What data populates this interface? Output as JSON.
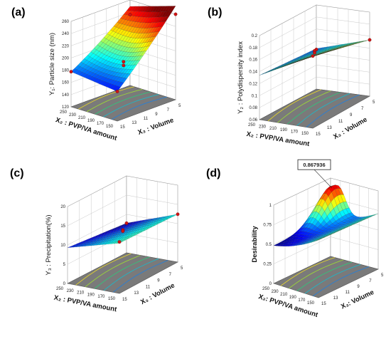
{
  "chart_data": [
    {
      "type": "surface3d",
      "panel_label": "(a)",
      "zlabel": "Y₁: Particle size (nm)",
      "xlabel": "X₂ : PVP/VA amount",
      "ylabel": "X₃ : Volume",
      "zticks": [
        "260",
        "240",
        "220",
        "200",
        "180",
        "160",
        "140",
        "120"
      ],
      "xticks": [
        "150",
        "170",
        "190",
        "210",
        "230",
        "250"
      ],
      "yticks": [
        "15",
        "13",
        "11",
        "9",
        "7",
        "5"
      ],
      "xlim": [
        150,
        250
      ],
      "ylim": [
        5,
        15
      ],
      "zlim": [
        120,
        260
      ],
      "corners": {
        "x150_y15": 150,
        "x250_y15": 138,
        "x150_y5": 228,
        "x250_y5": 260
      },
      "design_points": [
        [
          250,
          5,
          260
        ],
        [
          150,
          5,
          228
        ],
        [
          250,
          15,
          138
        ],
        [
          150,
          15,
          150
        ],
        [
          200,
          10,
          164
        ],
        [
          200,
          10,
          156
        ]
      ]
    },
    {
      "type": "surface3d",
      "panel_label": "(b)",
      "zlabel": "Y₂ : Polydispersity index",
      "xlabel": "X₂ : PVP/VA amount",
      "ylabel": "X₃ : Volume",
      "zticks": [
        "0.2",
        "0.18",
        "0.16",
        "0.14",
        "0.12",
        "0.1",
        "0.08",
        "0.06"
      ],
      "xticks": [
        "150",
        "170",
        "190",
        "210",
        "230",
        "250"
      ],
      "yticks": [
        "15",
        "13",
        "11",
        "9",
        "7",
        "5"
      ],
      "xlim": [
        150,
        250
      ],
      "ylim": [
        5,
        15
      ],
      "zlim": [
        0.06,
        0.2
      ],
      "corners": {
        "x150_y15": 0.1,
        "x250_y15": 0.17,
        "x150_y5": 0.09,
        "x250_y5": 0.13
      },
      "design_points": [
        [
          250,
          15,
          0.17
        ],
        [
          150,
          5,
          0.088
        ],
        [
          200,
          10,
          0.133
        ],
        [
          200,
          10,
          0.128
        ],
        [
          250,
          5,
          0.13
        ]
      ]
    },
    {
      "type": "surface3d",
      "panel_label": "(c)",
      "zlabel": "Y₃ : Precipitation(%)",
      "xlabel": "X₂ : PVP/VA amount",
      "ylabel": "X₃ : Volume",
      "zticks": [
        "20",
        "15",
        "10",
        "5",
        "0"
      ],
      "xticks": [
        "150",
        "170",
        "190",
        "210",
        "230",
        "250"
      ],
      "yticks": [
        "15",
        "13",
        "11",
        "9",
        "7",
        "5"
      ],
      "xlim": [
        150,
        250
      ],
      "ylim": [
        5,
        15
      ],
      "zlim": [
        0,
        20
      ],
      "corners": {
        "x150_y15": 3,
        "x250_y15": 9,
        "x150_y5": 0.5,
        "x250_y5": 8
      },
      "design_points": [
        [
          250,
          15,
          9.5
        ],
        [
          150,
          5,
          0.5
        ],
        [
          200,
          10,
          6
        ],
        [
          200,
          10,
          5.5
        ],
        [
          250,
          5,
          8
        ]
      ]
    },
    {
      "type": "surface3d",
      "panel_label": "(d)",
      "zlabel": "Desirability",
      "xlabel": "X₂: PVP/VA amount",
      "ylabel": "X₃: Volume",
      "zticks": [
        "1",
        "0.75",
        "0.5",
        "0.25",
        "0"
      ],
      "xticks": [
        "150",
        "170",
        "190",
        "210",
        "230",
        "250"
      ],
      "yticks": [
        "15",
        "13",
        "11",
        "9",
        "7",
        "5"
      ],
      "xlim": [
        150,
        250
      ],
      "ylim": [
        5,
        15
      ],
      "zlim": [
        0,
        1
      ],
      "annotation": "0.867936",
      "optimum": [
        165,
        6,
        0.867936
      ]
    }
  ]
}
